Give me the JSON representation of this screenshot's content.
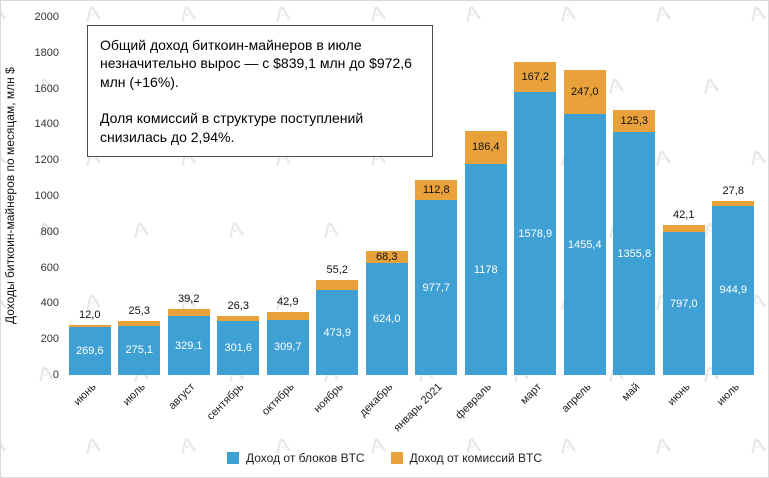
{
  "annotation": {
    "line1": "Общий доход биткоин-майнеров в июле незначительно вырос — с $839,1 млн до $972,6 млн (+16%).",
    "line2": "Доля комиссий в структуре поступлений снизилась до 2,94%."
  },
  "chart_data": {
    "type": "bar",
    "stacked": true,
    "title": "",
    "xlabel": "",
    "ylabel": "Доходы биткоин-майнеров по месяцам, млн $",
    "ylim": [
      0,
      2000
    ],
    "ytick_step": 200,
    "yticks": [
      "0",
      "200",
      "400",
      "600",
      "800",
      "1000",
      "1200",
      "1400",
      "1600",
      "1800",
      "2000"
    ],
    "grid": false,
    "legend_position": "bottom",
    "categories": [
      "июнь",
      "июль",
      "август",
      "сентябрь",
      "октябрь",
      "ноябрь",
      "декабрь",
      "январь 2021",
      "февраль",
      "март",
      "апрель",
      "май",
      "июнь",
      "июль"
    ],
    "series": [
      {
        "name": "Доход от блоков BTC",
        "color": "#3fa0d4",
        "values": [
          269.6,
          275.1,
          329.1,
          301.6,
          309.7,
          473.9,
          624.0,
          977.7,
          1178,
          1578.9,
          1455.4,
          1355.8,
          797.0,
          944.9
        ],
        "labels": [
          "269,6",
          "275,1",
          "329,1",
          "301,6",
          "309,7",
          "473,9",
          "624,0",
          "977,7",
          "1178",
          "1578,9",
          "1455,4",
          "1355,8",
          "797,0",
          "944,9"
        ]
      },
      {
        "name": "Доход от комиссий BTC",
        "color": "#e9a23b",
        "values": [
          12.0,
          25.3,
          39.2,
          26.3,
          42.9,
          55.2,
          68.3,
          112.8,
          186.4,
          167.2,
          247.0,
          125.3,
          42.1,
          27.8
        ],
        "labels": [
          "12,0",
          "25,3",
          "39,2",
          "26,3",
          "42,9",
          "55,2",
          "68,3",
          "112,8",
          "186,4",
          "167,2",
          "247,0",
          "125,3",
          "42,1",
          "27,8"
        ]
      }
    ],
    "legend": [
      {
        "label": "Доход от блоков BTC",
        "color": "#3fa0d4"
      },
      {
        "label": "Доход от комиссий BTC",
        "color": "#e9a23b"
      }
    ]
  }
}
